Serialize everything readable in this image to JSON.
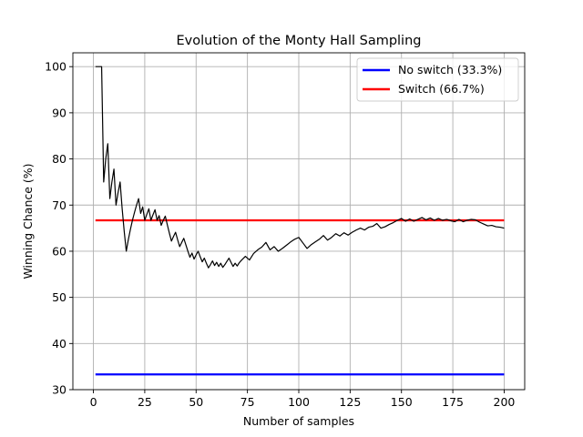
{
  "chart_data": {
    "type": "line",
    "title": "Evolution of the Monty Hall Sampling",
    "xlabel": "Number of samples",
    "ylabel": "Winning Chance (%)",
    "xlim": [
      -10,
      210
    ],
    "ylim": [
      30,
      103
    ],
    "xticks": [
      0,
      25,
      50,
      75,
      100,
      125,
      150,
      175,
      200
    ],
    "yticks": [
      30,
      40,
      50,
      60,
      70,
      80,
      90,
      100
    ],
    "grid": true,
    "legend_position": "top-right",
    "series": [
      {
        "name": "No switch (33.3%)",
        "color": "#0000ff",
        "x": [
          1,
          200
        ],
        "y": [
          33.3,
          33.3
        ]
      },
      {
        "name": "Switch (66.7%)",
        "color": "#ff0000",
        "x": [
          1,
          200
        ],
        "y": [
          66.7,
          66.7
        ]
      },
      {
        "color": "#000000",
        "x": [
          1,
          2,
          3,
          4,
          5,
          6,
          7,
          8,
          9,
          10,
          11,
          12,
          13,
          14,
          15,
          16,
          17,
          18,
          19,
          20,
          21,
          22,
          23,
          24,
          25,
          26,
          27,
          28,
          29,
          30,
          31,
          32,
          33,
          34,
          35,
          36,
          37,
          38,
          39,
          40,
          41,
          42,
          43,
          44,
          45,
          46,
          47,
          48,
          49,
          50,
          51,
          52,
          53,
          54,
          55,
          56,
          57,
          58,
          59,
          60,
          61,
          62,
          63,
          64,
          65,
          66,
          67,
          68,
          69,
          70,
          71,
          72,
          74,
          76,
          78,
          80,
          82,
          84,
          86,
          88,
          90,
          92,
          94,
          96,
          98,
          100,
          102,
          104,
          106,
          108,
          110,
          112,
          114,
          116,
          118,
          120,
          122,
          124,
          126,
          128,
          130,
          132,
          134,
          136,
          138,
          140,
          142,
          144,
          146,
          148,
          150,
          152,
          154,
          156,
          158,
          160,
          162,
          164,
          166,
          168,
          170,
          172,
          174,
          176,
          178,
          180,
          182,
          184,
          186,
          188,
          190,
          192,
          194,
          196,
          198,
          200
        ],
        "y": [
          100,
          100,
          100,
          100,
          75,
          80,
          83.3,
          71.4,
          75,
          77.8,
          70,
          72.7,
          75,
          69.2,
          64.3,
          60,
          62.5,
          64.7,
          66.7,
          68.4,
          70,
          71.4,
          68.2,
          69.6,
          66.7,
          68,
          69.2,
          66.7,
          67.9,
          69,
          66.7,
          67.7,
          65.6,
          66.7,
          67.6,
          65.7,
          63.9,
          62.2,
          63.2,
          64.1,
          62.5,
          61,
          61.9,
          62.8,
          61.4,
          60,
          58.7,
          59.6,
          58.3,
          59.2,
          60,
          58.8,
          57.7,
          58.5,
          57.4,
          56.4,
          57.1,
          57.9,
          56.9,
          57.6,
          56.7,
          57.4,
          56.5,
          57.1,
          57.8,
          58.5,
          57.6,
          56.7,
          57.4,
          56.8,
          57.5,
          58,
          58.9,
          58.1,
          59.5,
          60.3,
          60.9,
          61.9,
          60.3,
          61,
          60,
          60.6,
          61.3,
          62,
          62.6,
          63,
          61.8,
          60.6,
          61.4,
          62,
          62.6,
          63.4,
          62.4,
          63,
          63.8,
          63.3,
          64,
          63.5,
          64.1,
          64.6,
          65,
          64.6,
          65.2,
          65.4,
          66,
          65,
          65.3,
          65.8,
          66.2,
          66.7,
          67.1,
          66.5,
          67,
          66.5,
          66.9,
          67.3,
          66.8,
          67.2,
          66.7,
          67.1,
          66.7,
          66.9,
          66.6,
          66.4,
          66.9,
          66.4,
          66.7,
          66.9,
          66.8,
          66.3,
          65.9,
          65.5,
          65.6,
          65.3,
          65.2,
          65
        ]
      }
    ]
  }
}
